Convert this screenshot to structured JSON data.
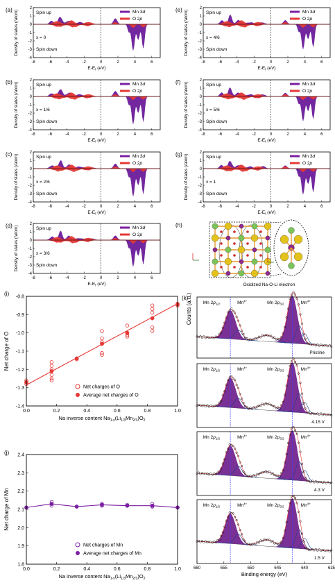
{
  "colors": {
    "mn_fill": "#6a1b9a",
    "o_fill": "#e53935",
    "mn_line": "#7b1fa2",
    "o_line": "#e53935",
    "xps_peak_fill": "#6a1b8a",
    "xps_line": "#1f3f8f",
    "dashed_ref": "#3c3cff",
    "atom_green": "#7cc35a",
    "atom_yellow": "#e3c21c",
    "atom_purple": "#8e2a8e",
    "atom_red": "#d12b2b",
    "atom_orange": "#e69a2c"
  },
  "dos_common": {
    "ylabel": "Density of states (/atom)",
    "xlabel": "E-E",
    "xlabel_sub": "f",
    "xlabel_unit": " (eV)",
    "spin_up": "Spin up",
    "spin_down": "Spin down",
    "legend_mn": "Mn 3",
    "legend_mn_italic": "d",
    "legend_o": "O 2",
    "legend_o_italic": "p",
    "x_ticks": [
      "-8",
      "-6",
      "-4",
      "-2",
      "0",
      "2",
      "4",
      "6"
    ],
    "y_ticks": [
      "2",
      "1",
      "0",
      "-1",
      "-2",
      "-3",
      "-4"
    ],
    "x_range": [
      -8,
      7
    ],
    "y_range": [
      -4,
      2
    ]
  },
  "dos_panels": [
    {
      "label": "(a)",
      "x_text": "x = 0"
    },
    {
      "label": "(b)",
      "x_text": "x = 1/6"
    },
    {
      "label": "(c)",
      "x_text": "x = 2/6"
    },
    {
      "label": "(d)",
      "x_text": "x = 3/6"
    },
    {
      "label": "(e)",
      "x_text": "x = 4/6"
    },
    {
      "label": "(f)",
      "x_text": "x = 5/6"
    },
    {
      "label": "(g)",
      "x_text": "x = 1"
    }
  ],
  "structure_panel": {
    "label": "(h)",
    "caption": "Oxidized Na-O-Li electron"
  },
  "chart_data": [
    {
      "type": "scatter",
      "label": "(i)",
      "ylabel": "Net charge of O",
      "xlabel": "Na inverse content Na",
      "xlabel_suffix": "(Li",
      "xlabel_formula": "1-x(Li1/3Mn2/3)O2",
      "xlim": [
        0.0,
        1.0
      ],
      "ylim": [
        -1.4,
        -0.8
      ],
      "x_ticks": [
        "0.0",
        "0.2",
        "0.4",
        "0.6",
        "0.8",
        "1.0"
      ],
      "y_ticks": [
        "-0.8",
        "-0.9",
        "-1.0",
        "-1.1",
        "-1.2",
        "-1.3",
        "-1.4"
      ],
      "legend": [
        "Net charges of O",
        "Average net charges of O"
      ],
      "series": [
        {
          "name": "Net charges of O",
          "points": [
            [
              0,
              -1.26
            ],
            [
              0,
              -1.27
            ],
            [
              0,
              -1.28
            ],
            [
              0.167,
              -1.16
            ],
            [
              0.167,
              -1.18
            ],
            [
              0.167,
              -1.2
            ],
            [
              0.167,
              -1.23
            ],
            [
              0.167,
              -1.25
            ],
            [
              0.167,
              -1.26
            ],
            [
              0.333,
              -1.14
            ],
            [
              0.333,
              -1.145
            ],
            [
              0.5,
              -0.99
            ],
            [
              0.5,
              -1.03
            ],
            [
              0.5,
              -1.05
            ],
            [
              0.5,
              -1.06
            ],
            [
              0.5,
              -1.11
            ],
            [
              0.5,
              -1.12
            ],
            [
              0.667,
              -0.96
            ],
            [
              0.667,
              -1.0
            ],
            [
              0.667,
              -1.01
            ],
            [
              0.667,
              -1.02
            ],
            [
              0.833,
              -0.85
            ],
            [
              0.833,
              -0.87
            ],
            [
              0.833,
              -0.89
            ],
            [
              0.833,
              -0.97
            ],
            [
              0.833,
              -0.99
            ],
            [
              1.0,
              -0.84
            ],
            [
              1.0,
              -0.85
            ]
          ]
        },
        {
          "name": "Average net charges of O",
          "x": [
            0,
            0.167,
            0.333,
            0.5,
            0.667,
            0.833,
            1.0
          ],
          "values": [
            -1.27,
            -1.21,
            -1.14,
            -1.06,
            -1.0,
            -0.92,
            -0.845
          ]
        }
      ]
    },
    {
      "type": "scatter",
      "label": "(j)",
      "ylabel": "Net charge of Mn",
      "xlabel": "Na inverse content Na",
      "xlim": [
        0.0,
        1.0
      ],
      "ylim": [
        1.8,
        2.4
      ],
      "x_ticks": [
        "0.0",
        "0.2",
        "0.4",
        "0.6",
        "0.8",
        "1.0"
      ],
      "y_ticks": [
        "2.4",
        "2.3",
        "2.2",
        "2.1",
        "2.0",
        "1.9",
        "1.8"
      ],
      "legend": [
        "Net charges of Mn",
        "Average net charges of Mn"
      ],
      "series": [
        {
          "name": "Net charges of Mn",
          "points": [
            [
              0,
              2.11
            ],
            [
              0.167,
              2.12
            ],
            [
              0.167,
              2.13
            ],
            [
              0.167,
              2.14
            ],
            [
              0.333,
              2.115
            ],
            [
              0.5,
              2.12
            ],
            [
              0.5,
              2.13
            ],
            [
              0.667,
              2.12
            ],
            [
              0.667,
              2.125
            ],
            [
              0.833,
              2.115
            ],
            [
              0.833,
              2.13
            ],
            [
              1.0,
              2.11
            ]
          ]
        },
        {
          "name": "Average net charges of Mn",
          "x": [
            0,
            0.167,
            0.333,
            0.5,
            0.667,
            0.833,
            1.0
          ],
          "values": [
            2.11,
            2.13,
            2.115,
            2.125,
            2.12,
            2.12,
            2.11
          ]
        }
      ]
    }
  ],
  "xps": {
    "label": "(k)",
    "ylabel": "Counts (a.u.)",
    "xlabel": "Binding energy (eV)",
    "x_ticks": [
      "660",
      "655",
      "650",
      "645",
      "640",
      "635"
    ],
    "peak_labels": {
      "p12_main": "Mn 2",
      "p12_sub": "1/2",
      "p32_main": "Mn 2",
      "p32_sub": "3/2",
      "italic_p": "p",
      "mn4": "Mn",
      "mn4_sup": "4+"
    },
    "panels": [
      {
        "state": "Pristine"
      },
      {
        "state": "4.15 V"
      },
      {
        "state": "4.3 V"
      },
      {
        "state": "1.5 V"
      }
    ]
  }
}
